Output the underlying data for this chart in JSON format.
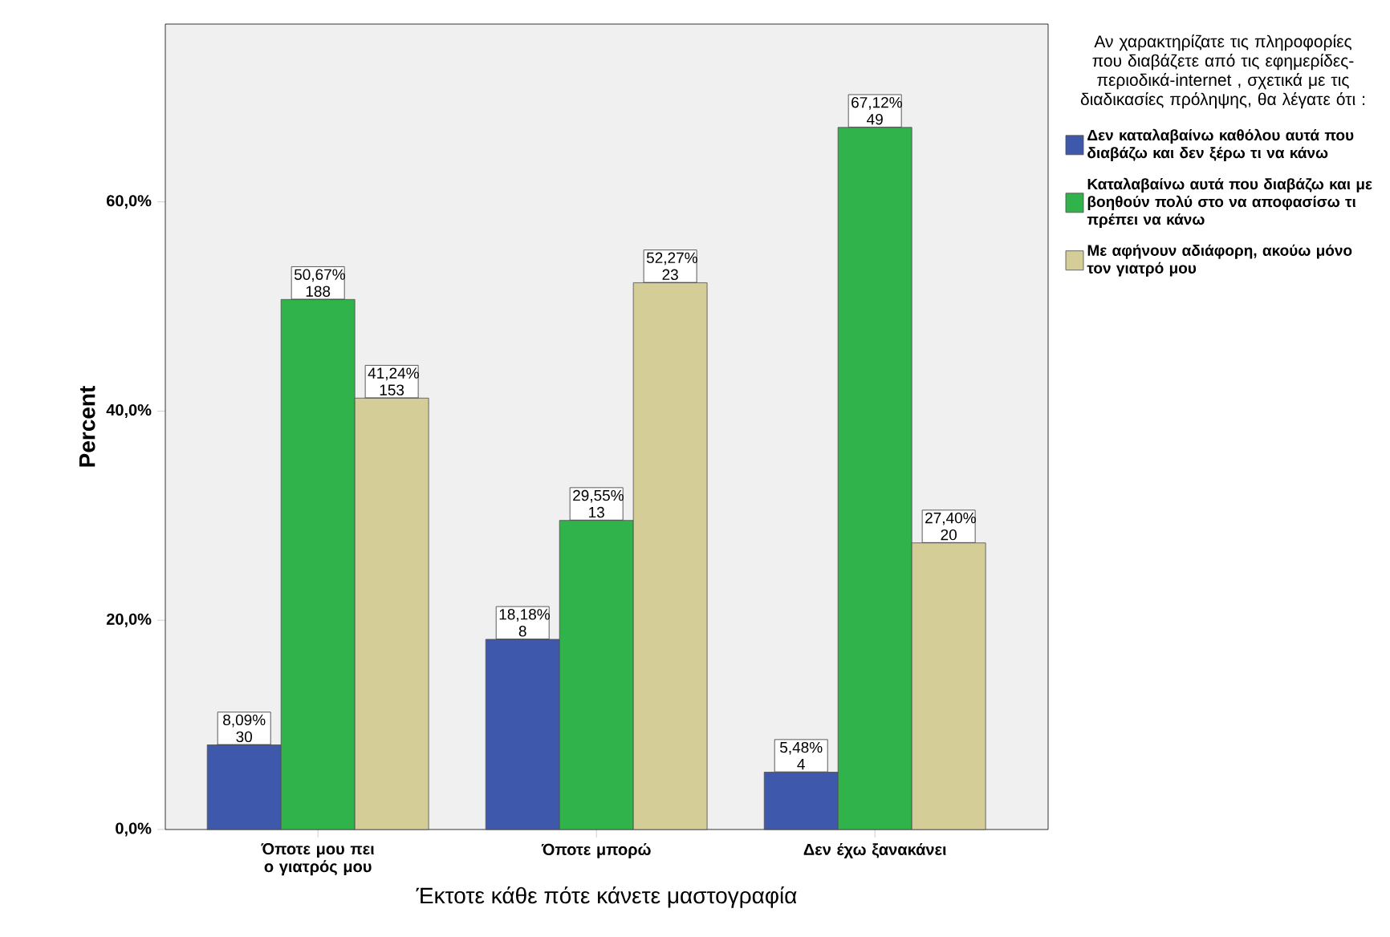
{
  "chart_data": {
    "type": "bar",
    "xlabel": "Έκτοτε κάθε πότε κάνετε μαστογραφία",
    "ylabel": "Percent",
    "legend_title": "Αν χαρακτηρίζατε τις πληροφορίες που διαβάζετε από τις εφημερίδες-περιοδικά-internet , σχετικά με τις διαδικασίες πρόληψης, θα λέγατε ότι :",
    "categories": [
      "Όποτε μου πει ο γιατρός μου",
      "Όποτε μπορώ",
      "Δεν έχω ξανακάνει"
    ],
    "series": [
      {
        "name": "Δεν καταλαβαίνω καθόλου αυτά που διαβάζω και δεν ξέρω τι να κάνω",
        "color": "#3e58ac",
        "values": [
          8.09,
          18.18,
          5.48
        ],
        "value_labels": [
          "8,09% 30",
          "18,18% 8",
          "5,48% 4"
        ]
      },
      {
        "name": "Καταλαβαίνω αυτά που διαβάζω και με βοηθούν πολύ στο να αποφασίσω τι πρέπει να κάνω",
        "color": "#2fb34a",
        "values": [
          50.67,
          29.55,
          67.12
        ],
        "value_labels": [
          "50,67% 188",
          "29,55% 13",
          "67,12% 49"
        ]
      },
      {
        "name": "Με αφήνουν αδιάφορη, ακούω μόνο τον γιατρό μου",
        "color": "#d4cd98",
        "values": [
          41.24,
          52.27,
          27.4
        ],
        "value_labels": [
          "41,24% 153",
          "52,27% 23",
          "27,40% 20"
        ]
      }
    ],
    "ylim": [
      0,
      77
    ],
    "yticks": [
      {
        "value": 0,
        "label": "0,0%"
      },
      {
        "value": 20,
        "label": "20,0%"
      },
      {
        "value": 40,
        "label": "40,0%"
      },
      {
        "value": 60,
        "label": "60,0%"
      }
    ],
    "grid": false,
    "legend": "right"
  }
}
